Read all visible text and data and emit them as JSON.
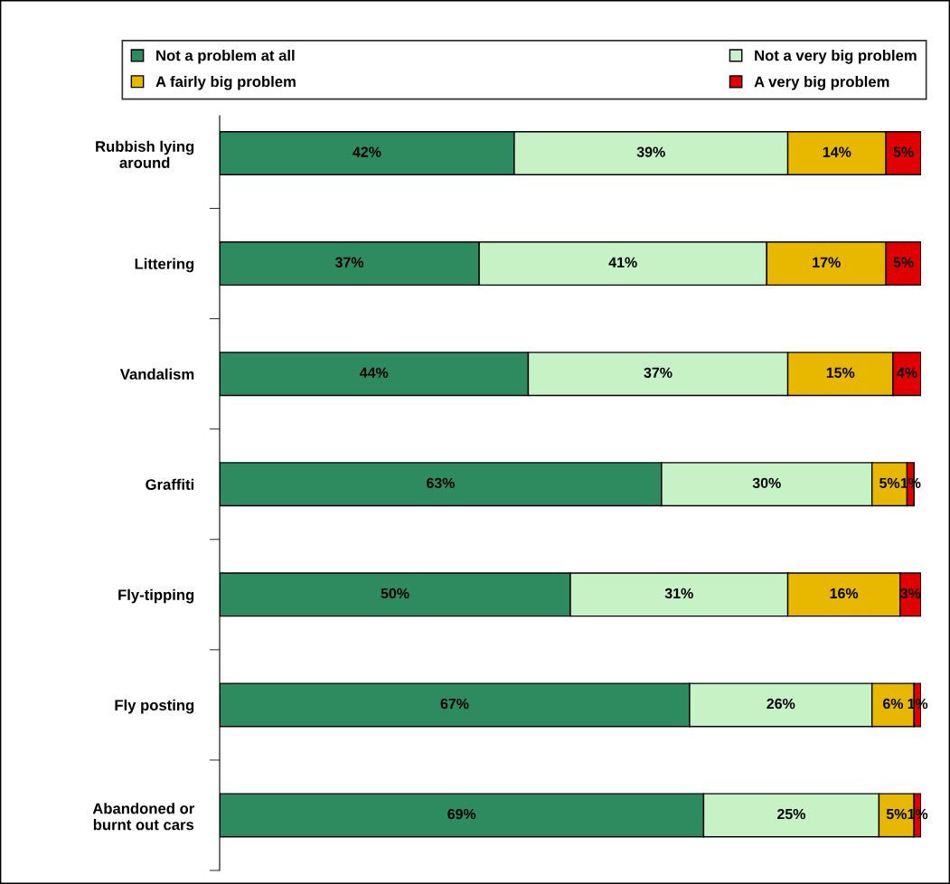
{
  "chart_data": {
    "type": "bar",
    "orientation": "horizontal",
    "stacked": true,
    "legend": "top",
    "tick_labels": "y",
    "categories": [
      "Rubbish lying\naround",
      "Littering",
      "Vandalism",
      "Graffiti",
      "Fly-tipping",
      "Fly posting",
      "Abandoned or\nburnt out cars"
    ],
    "series": [
      {
        "name": "Not a problem at all",
        "color": "#2e8b60",
        "values": [
          42,
          37,
          44,
          63,
          50,
          67,
          69
        ],
        "value_labels": [
          "42%",
          "37%",
          "44%",
          "63%",
          "50%",
          "67%",
          "69%"
        ]
      },
      {
        "name": "Not a very big problem",
        "color": "#c6f2c6",
        "values": [
          39,
          41,
          37,
          30,
          31,
          26,
          25
        ],
        "value_labels": [
          "39%",
          "41%",
          "37%",
          "30%",
          "31%",
          "26%",
          "25%"
        ]
      },
      {
        "name": "A fairly big problem",
        "color": "#e8b800",
        "values": [
          14,
          17,
          15,
          5,
          16,
          6,
          5
        ],
        "value_labels": [
          "14%",
          "17%",
          "15%",
          "5%",
          "16%",
          "6%",
          "5%"
        ]
      },
      {
        "name": "A very big problem",
        "color": "#e00000",
        "values": [
          5,
          5,
          4,
          1,
          3,
          1,
          1
        ],
        "value_labels": [
          "5%",
          "5%",
          "4%",
          "1%",
          "3%",
          "1%",
          "1%"
        ]
      }
    ]
  }
}
